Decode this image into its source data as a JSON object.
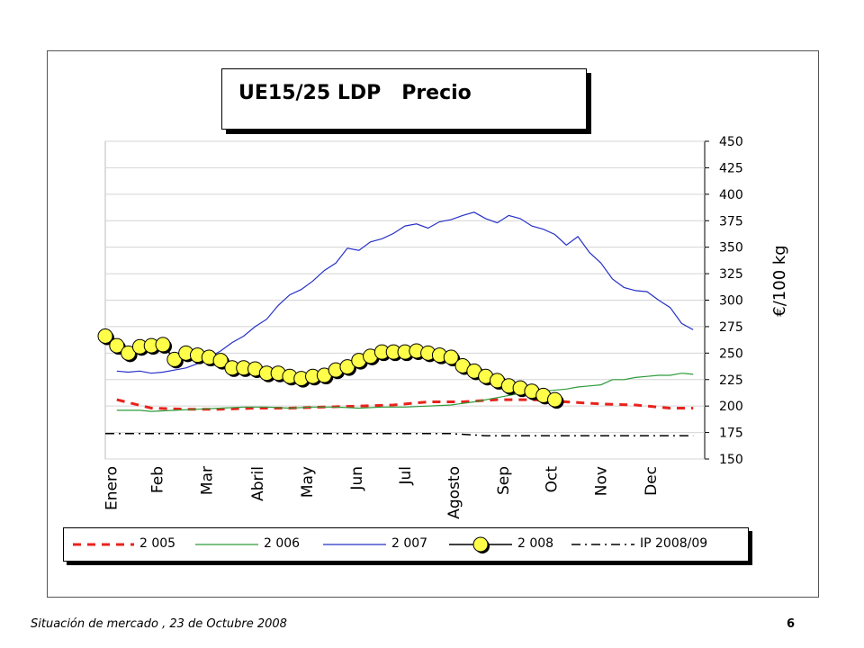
{
  "footer": {
    "text": "Situación de mercado , 23 de  Octubre  2008",
    "page": "6"
  },
  "chart_data": {
    "type": "line",
    "title": "UE15/25 LDP   Precio",
    "ylabel": "€/100 kg",
    "ylim": [
      150,
      450
    ],
    "yticks": [
      150,
      175,
      200,
      225,
      250,
      275,
      300,
      325,
      350,
      375,
      400,
      425,
      450
    ],
    "grid": true,
    "legend_position": "bottom",
    "x_range": [
      0,
      52
    ],
    "month_labels": [
      "Enero",
      "Feb",
      "Mar",
      "Abril",
      "May",
      "Jun",
      "Jul",
      "Agosto",
      "Sep",
      "Oct",
      "Nov",
      "Dec"
    ],
    "month_positions": [
      0.5,
      4.5,
      8.8,
      13.2,
      17.5,
      21.8,
      26.0,
      30.2,
      34.5,
      38.7,
      43.0,
      47.3
    ],
    "colors": {
      "s2005": "#e8231c",
      "s2006": "#2e9b3a",
      "s2007": "#2630c8",
      "s2008": "#ffff4a",
      "ip": "#000000"
    },
    "series": [
      {
        "name": "2 005",
        "x": [
          1,
          4,
          7,
          10,
          13,
          16,
          19,
          22,
          25,
          28,
          31,
          34,
          37,
          40,
          43,
          46,
          49,
          51
        ],
        "values": [
          206,
          198,
          197,
          197,
          198,
          198,
          199,
          200,
          201,
          204,
          204,
          206,
          206,
          204,
          202,
          201,
          198,
          198
        ]
      },
      {
        "name": "2 006",
        "x": [
          1,
          3,
          4,
          6,
          8,
          10,
          12,
          14,
          16,
          18,
          20,
          22,
          24,
          26,
          28,
          30,
          32,
          34,
          36,
          38,
          40,
          41,
          42,
          43,
          44,
          45,
          46,
          47,
          48,
          49,
          50,
          51
        ],
        "values": [
          196,
          196,
          195,
          196,
          197,
          198,
          199,
          199,
          198,
          199,
          199,
          198,
          199,
          199,
          200,
          201,
          204,
          208,
          212,
          214,
          216,
          218,
          219,
          220,
          225,
          225,
          227,
          228,
          229,
          229,
          231,
          230
        ]
      },
      {
        "name": "2 007",
        "x": [
          1,
          2,
          3,
          4,
          5,
          6,
          7,
          8,
          9,
          10,
          11,
          12,
          13,
          14,
          15,
          16,
          17,
          18,
          19,
          20,
          21,
          22,
          23,
          24,
          25,
          26,
          27,
          28,
          29,
          30,
          31,
          32,
          33,
          34,
          35,
          36,
          37,
          38,
          39,
          40,
          41,
          42,
          43,
          44,
          45,
          46,
          47,
          48,
          49,
          50,
          51
        ],
        "values": [
          233,
          232,
          233,
          231,
          232,
          234,
          236,
          240,
          246,
          252,
          260,
          266,
          275,
          282,
          295,
          305,
          310,
          318,
          328,
          335,
          349,
          347,
          355,
          358,
          363,
          370,
          372,
          368,
          374,
          376,
          380,
          383,
          377,
          373,
          380,
          377,
          370,
          367,
          362,
          352,
          360,
          345,
          335,
          320,
          312,
          309,
          308,
          300,
          293,
          278,
          272
        ]
      },
      {
        "name": "2 008",
        "x": [
          0,
          1,
          2,
          3,
          4,
          5,
          6,
          7,
          8,
          9,
          10,
          11,
          12,
          13,
          14,
          15,
          16,
          17,
          18,
          19,
          20,
          21,
          22,
          23,
          24,
          25,
          26,
          27,
          28,
          29,
          30,
          31,
          32,
          33,
          34,
          35,
          36,
          37,
          38,
          39
        ],
        "values": [
          266,
          257,
          250,
          256,
          257,
          258,
          244,
          250,
          248,
          246,
          243,
          236,
          236,
          235,
          231,
          231,
          228,
          226,
          228,
          229,
          234,
          237,
          243,
          247,
          251,
          251,
          251,
          252,
          250,
          248,
          246,
          238,
          233,
          228,
          224,
          219,
          217,
          214,
          210,
          206
        ]
      },
      {
        "name": "IP 2008/09",
        "x": [
          0,
          5,
          10,
          15,
          20,
          25,
          30,
          33,
          38,
          43,
          48,
          51
        ],
        "values": [
          174,
          174,
          174,
          174,
          174,
          174,
          174,
          172,
          172,
          172,
          172,
          172
        ]
      }
    ]
  }
}
